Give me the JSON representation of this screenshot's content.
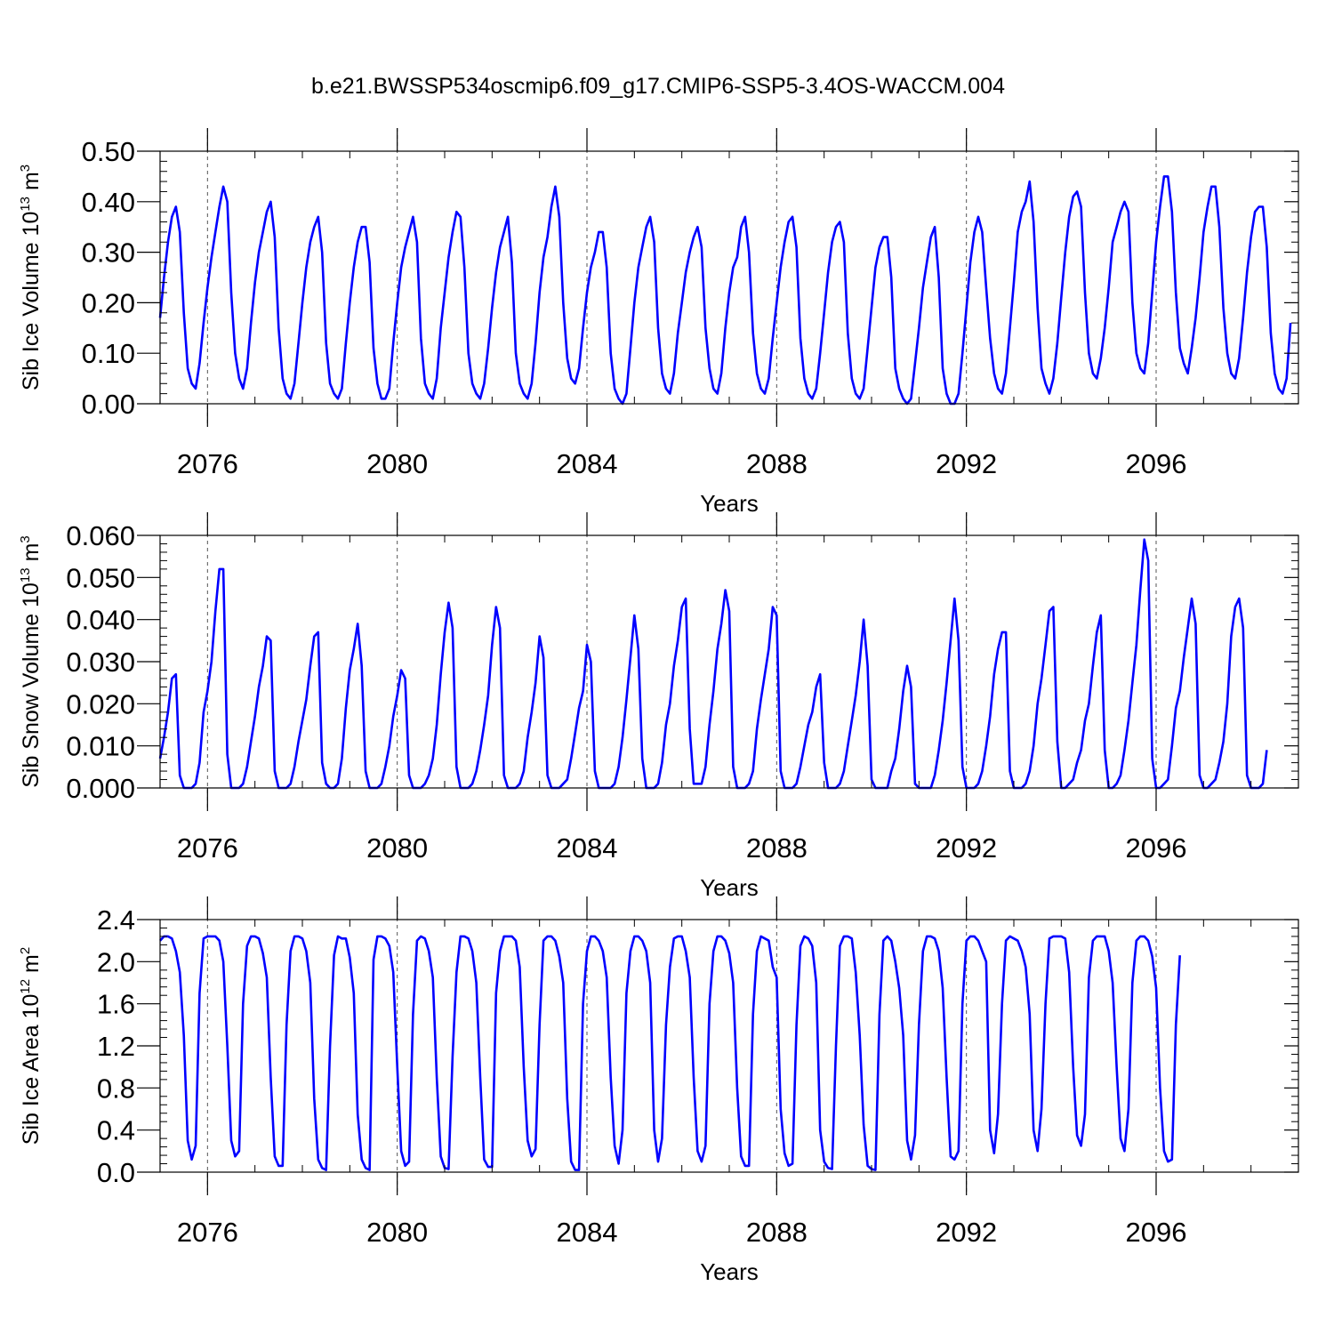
{
  "title": "b.e21.BWSSP534oscmip6.f09_g17.CMIP6-SSP5-3.4OS-WACCM.004",
  "colors": {
    "series": "#0000ff",
    "axis": "#000000",
    "grid": "#555555"
  },
  "chart_data": [
    {
      "type": "line",
      "xlabel": "Years",
      "ylabel": {
        "base": "Sib Ice Volume 10",
        "exp": "13",
        "unit": " m",
        "unit_exp": "3"
      },
      "xlim": [
        2075,
        2099
      ],
      "ylim": [
        0,
        0.5
      ],
      "x_ticks": [
        "2076",
        "2080",
        "2084",
        "2088",
        "2092",
        "2096"
      ],
      "y_ticks": [
        "0.00",
        "0.10",
        "0.20",
        "0.30",
        "0.40",
        "0.50"
      ],
      "grid": "dashed vertical lines at x ticks",
      "x_start": 2075.0,
      "x_step_months": 1,
      "series": [
        {
          "values": [
            0.17,
            0.25,
            0.32,
            0.37,
            0.39,
            0.34,
            0.18,
            0.07,
            0.04,
            0.03,
            0.08,
            0.16,
            0.23,
            0.29,
            0.34,
            0.39,
            0.43,
            0.4,
            0.22,
            0.1,
            0.05,
            0.03,
            0.07,
            0.16,
            0.24,
            0.3,
            0.34,
            0.38,
            0.4,
            0.33,
            0.15,
            0.05,
            0.02,
            0.01,
            0.04,
            0.12,
            0.2,
            0.27,
            0.32,
            0.35,
            0.37,
            0.3,
            0.12,
            0.04,
            0.02,
            0.01,
            0.03,
            0.12,
            0.2,
            0.27,
            0.32,
            0.35,
            0.35,
            0.28,
            0.11,
            0.04,
            0.01,
            0.01,
            0.03,
            0.12,
            0.2,
            0.27,
            0.31,
            0.34,
            0.37,
            0.32,
            0.13,
            0.04,
            0.02,
            0.01,
            0.05,
            0.15,
            0.22,
            0.29,
            0.34,
            0.38,
            0.37,
            0.27,
            0.1,
            0.04,
            0.02,
            0.01,
            0.04,
            0.11,
            0.19,
            0.26,
            0.31,
            0.34,
            0.37,
            0.28,
            0.1,
            0.04,
            0.02,
            0.01,
            0.04,
            0.12,
            0.22,
            0.29,
            0.33,
            0.39,
            0.43,
            0.37,
            0.2,
            0.09,
            0.05,
            0.04,
            0.07,
            0.15,
            0.22,
            0.27,
            0.3,
            0.34,
            0.34,
            0.27,
            0.1,
            0.03,
            0.01,
            0.0,
            0.02,
            0.11,
            0.2,
            0.27,
            0.31,
            0.35,
            0.37,
            0.32,
            0.15,
            0.06,
            0.03,
            0.02,
            0.06,
            0.14,
            0.2,
            0.26,
            0.3,
            0.33,
            0.35,
            0.31,
            0.15,
            0.07,
            0.03,
            0.02,
            0.06,
            0.15,
            0.22,
            0.27,
            0.29,
            0.35,
            0.37,
            0.3,
            0.14,
            0.06,
            0.03,
            0.02,
            0.05,
            0.13,
            0.2,
            0.27,
            0.32,
            0.36,
            0.37,
            0.31,
            0.13,
            0.05,
            0.02,
            0.01,
            0.03,
            0.1,
            0.18,
            0.26,
            0.32,
            0.35,
            0.36,
            0.32,
            0.14,
            0.05,
            0.02,
            0.01,
            0.03,
            0.11,
            0.19,
            0.27,
            0.31,
            0.33,
            0.33,
            0.25,
            0.07,
            0.03,
            0.01,
            0.0,
            0.01,
            0.08,
            0.15,
            0.23,
            0.28,
            0.33,
            0.35,
            0.25,
            0.07,
            0.02,
            0.0,
            0.0,
            0.02,
            0.1,
            0.19,
            0.28,
            0.34,
            0.37,
            0.34,
            0.23,
            0.13,
            0.06,
            0.03,
            0.02,
            0.06,
            0.15,
            0.24,
            0.34,
            0.38,
            0.4,
            0.44,
            0.36,
            0.19,
            0.07,
            0.04,
            0.02,
            0.05,
            0.12,
            0.21,
            0.3,
            0.37,
            0.41,
            0.42,
            0.39,
            0.22,
            0.1,
            0.06,
            0.05,
            0.09,
            0.15,
            0.23,
            0.32,
            0.35,
            0.38,
            0.4,
            0.38,
            0.2,
            0.1,
            0.07,
            0.06,
            0.12,
            0.22,
            0.32,
            0.39,
            0.45,
            0.45,
            0.38,
            0.22,
            0.11,
            0.08,
            0.06,
            0.11,
            0.17,
            0.25,
            0.34,
            0.39,
            0.43,
            0.43,
            0.35,
            0.19,
            0.1,
            0.06,
            0.05,
            0.09,
            0.17,
            0.26,
            0.33,
            0.38,
            0.39,
            0.39,
            0.31,
            0.14,
            0.06,
            0.03,
            0.02,
            0.05,
            0.16
          ]
        }
      ]
    },
    {
      "type": "line",
      "xlabel": "Years",
      "ylabel": {
        "base": "Sib Snow Volume 10",
        "exp": "13",
        "unit": " m",
        "unit_exp": "3"
      },
      "xlim": [
        2075,
        2099
      ],
      "ylim": [
        0,
        0.06
      ],
      "x_ticks": [
        "2076",
        "2080",
        "2084",
        "2088",
        "2092",
        "2096"
      ],
      "y_ticks": [
        "0.000",
        "0.010",
        "0.020",
        "0.030",
        "0.040",
        "0.050",
        "0.060"
      ],
      "grid": "dashed vertical lines at x ticks",
      "x_start": 2075.0,
      "x_step_months": 1,
      "series": [
        {
          "values": [
            0.007,
            0.012,
            0.018,
            0.026,
            0.027,
            0.003,
            0.0,
            0.0,
            0.0,
            0.001,
            0.006,
            0.018,
            0.023,
            0.03,
            0.042,
            0.052,
            0.052,
            0.008,
            0.0,
            0.0,
            0.0,
            0.001,
            0.005,
            0.011,
            0.017,
            0.024,
            0.029,
            0.036,
            0.035,
            0.004,
            0.0,
            0.0,
            0.0,
            0.001,
            0.005,
            0.011,
            0.016,
            0.021,
            0.029,
            0.036,
            0.037,
            0.006,
            0.001,
            0.0,
            0.0,
            0.001,
            0.007,
            0.019,
            0.028,
            0.033,
            0.039,
            0.029,
            0.004,
            0.0,
            0.0,
            0.0,
            0.001,
            0.005,
            0.01,
            0.017,
            0.022,
            0.028,
            0.026,
            0.003,
            0.0,
            0.0,
            0.0,
            0.001,
            0.003,
            0.007,
            0.015,
            0.027,
            0.037,
            0.044,
            0.038,
            0.005,
            0.0,
            0.0,
            0.0,
            0.001,
            0.004,
            0.009,
            0.015,
            0.022,
            0.034,
            0.043,
            0.038,
            0.003,
            0.0,
            0.0,
            0.0,
            0.001,
            0.004,
            0.012,
            0.018,
            0.025,
            0.036,
            0.031,
            0.003,
            0.0,
            0.0,
            0.0,
            0.001,
            0.002,
            0.007,
            0.013,
            0.019,
            0.023,
            0.034,
            0.03,
            0.004,
            0.0,
            0.0,
            0.0,
            0.0,
            0.001,
            0.005,
            0.012,
            0.021,
            0.031,
            0.041,
            0.033,
            0.007,
            0.0,
            0.0,
            0.0,
            0.001,
            0.006,
            0.015,
            0.02,
            0.029,
            0.035,
            0.043,
            0.045,
            0.014,
            0.001,
            0.001,
            0.001,
            0.005,
            0.015,
            0.023,
            0.033,
            0.039,
            0.047,
            0.042,
            0.005,
            0.0,
            0.0,
            0.0,
            0.001,
            0.004,
            0.014,
            0.021,
            0.027,
            0.033,
            0.043,
            0.041,
            0.004,
            0.0,
            0.0,
            0.0,
            0.001,
            0.005,
            0.01,
            0.015,
            0.018,
            0.024,
            0.027,
            0.006,
            0.0,
            0.0,
            0.0,
            0.001,
            0.004,
            0.01,
            0.016,
            0.022,
            0.03,
            0.04,
            0.029,
            0.002,
            0.0,
            0.0,
            0.0,
            0.0,
            0.004,
            0.007,
            0.014,
            0.023,
            0.029,
            0.024,
            0.001,
            0.0,
            0.0,
            0.0,
            0.0,
            0.003,
            0.009,
            0.016,
            0.025,
            0.035,
            0.045,
            0.035,
            0.005,
            0.0,
            0.0,
            0.0,
            0.001,
            0.004,
            0.01,
            0.017,
            0.027,
            0.033,
            0.037,
            0.037,
            0.004,
            0.0,
            0.0,
            0.0,
            0.001,
            0.004,
            0.01,
            0.02,
            0.026,
            0.034,
            0.042,
            0.043,
            0.011,
            0.0,
            0.0,
            0.001,
            0.002,
            0.006,
            0.009,
            0.016,
            0.02,
            0.029,
            0.037,
            0.041,
            0.009,
            0.0,
            0.0,
            0.001,
            0.003,
            0.009,
            0.016,
            0.025,
            0.034,
            0.047,
            0.059,
            0.054,
            0.007,
            0.0,
            0.0,
            0.001,
            0.002,
            0.01,
            0.019,
            0.023,
            0.031,
            0.038,
            0.045,
            0.039,
            0.003,
            0.0,
            0.0,
            0.001,
            0.002,
            0.006,
            0.011,
            0.02,
            0.036,
            0.043,
            0.045,
            0.038,
            0.003,
            0.0,
            0.0,
            0.0,
            0.001,
            0.009
          ]
        }
      ]
    },
    {
      "type": "line",
      "xlabel": "Years",
      "ylabel": {
        "base": "Sib Ice Area 10",
        "exp": "12",
        "unit": " m",
        "unit_exp": "2"
      },
      "xlim": [
        2075,
        2099
      ],
      "ylim": [
        0,
        2.4
      ],
      "x_ticks": [
        "2076",
        "2080",
        "2084",
        "2088",
        "2092",
        "2096"
      ],
      "y_ticks": [
        "0.0",
        "0.4",
        "0.8",
        "1.2",
        "1.6",
        "2.0",
        "2.4"
      ],
      "grid": "dashed vertical lines at x ticks",
      "x_start": 2075.0,
      "x_step_months": 1,
      "series": [
        {
          "values": [
            2.2,
            2.24,
            2.24,
            2.22,
            2.1,
            1.9,
            1.3,
            0.3,
            0.12,
            0.25,
            1.7,
            2.22,
            2.24,
            2.24,
            2.24,
            2.2,
            2.0,
            1.2,
            0.3,
            0.15,
            0.2,
            1.6,
            2.15,
            2.24,
            2.24,
            2.22,
            2.08,
            1.85,
            0.9,
            0.15,
            0.06,
            0.06,
            1.4,
            2.1,
            2.24,
            2.24,
            2.22,
            2.1,
            1.8,
            0.7,
            0.12,
            0.04,
            0.02,
            1.2,
            2.06,
            2.24,
            2.22,
            2.22,
            2.04,
            1.7,
            0.55,
            0.12,
            0.04,
            0.02,
            2.02,
            2.24,
            2.24,
            2.22,
            2.15,
            1.9,
            1.0,
            0.2,
            0.06,
            0.1,
            1.5,
            2.2,
            2.24,
            2.22,
            2.1,
            1.85,
            0.9,
            0.15,
            0.04,
            0.03,
            1.1,
            1.9,
            2.24,
            2.24,
            2.22,
            2.1,
            1.8,
            0.9,
            0.12,
            0.05,
            0.05,
            1.7,
            2.1,
            2.24,
            2.24,
            2.24,
            2.2,
            1.95,
            1.0,
            0.3,
            0.15,
            0.22,
            1.4,
            2.2,
            2.24,
            2.24,
            2.2,
            2.05,
            1.8,
            0.7,
            0.1,
            0.02,
            0.02,
            1.6,
            2.1,
            2.24,
            2.24,
            2.2,
            2.1,
            1.85,
            0.9,
            0.25,
            0.08,
            0.4,
            1.7,
            2.1,
            2.24,
            2.24,
            2.2,
            2.1,
            1.8,
            0.4,
            0.1,
            0.32,
            1.4,
            1.95,
            2.22,
            2.24,
            2.24,
            2.1,
            1.85,
            0.9,
            0.2,
            0.1,
            0.25,
            1.6,
            2.1,
            2.24,
            2.24,
            2.2,
            2.08,
            1.8,
            0.8,
            0.15,
            0.06,
            0.06,
            1.5,
            2.1,
            2.24,
            2.22,
            2.2,
            1.95,
            1.85,
            0.6,
            0.18,
            0.06,
            0.08,
            1.4,
            2.15,
            2.24,
            2.22,
            2.15,
            1.8,
            0.4,
            0.1,
            0.04,
            0.03,
            1.2,
            2.15,
            2.24,
            2.24,
            2.22,
            1.9,
            1.3,
            0.45,
            0.06,
            0.03,
            0.02,
            1.5,
            2.2,
            2.24,
            2.2,
            2.0,
            1.75,
            1.3,
            0.3,
            0.12,
            0.35,
            1.4,
            2.1,
            2.24,
            2.24,
            2.22,
            2.1,
            1.75,
            0.9,
            0.15,
            0.12,
            0.2,
            1.6,
            2.2,
            2.24,
            2.24,
            2.2,
            2.1,
            2.0,
            0.4,
            0.18,
            0.55,
            1.6,
            2.2,
            2.24,
            2.22,
            2.2,
            2.1,
            1.95,
            1.5,
            0.4,
            0.2,
            0.6,
            1.6,
            2.22,
            2.24,
            2.24,
            2.24,
            2.22,
            1.9,
            1.0,
            0.35,
            0.25,
            0.55,
            1.85,
            2.2,
            2.24,
            2.24,
            2.24,
            2.1,
            1.8,
            1.0,
            0.32,
            0.2,
            0.6,
            1.8,
            2.2,
            2.24,
            2.24,
            2.2,
            2.05,
            1.75,
            0.8,
            0.2,
            0.1,
            0.12,
            1.4,
            2.06
          ]
        }
      ]
    }
  ]
}
